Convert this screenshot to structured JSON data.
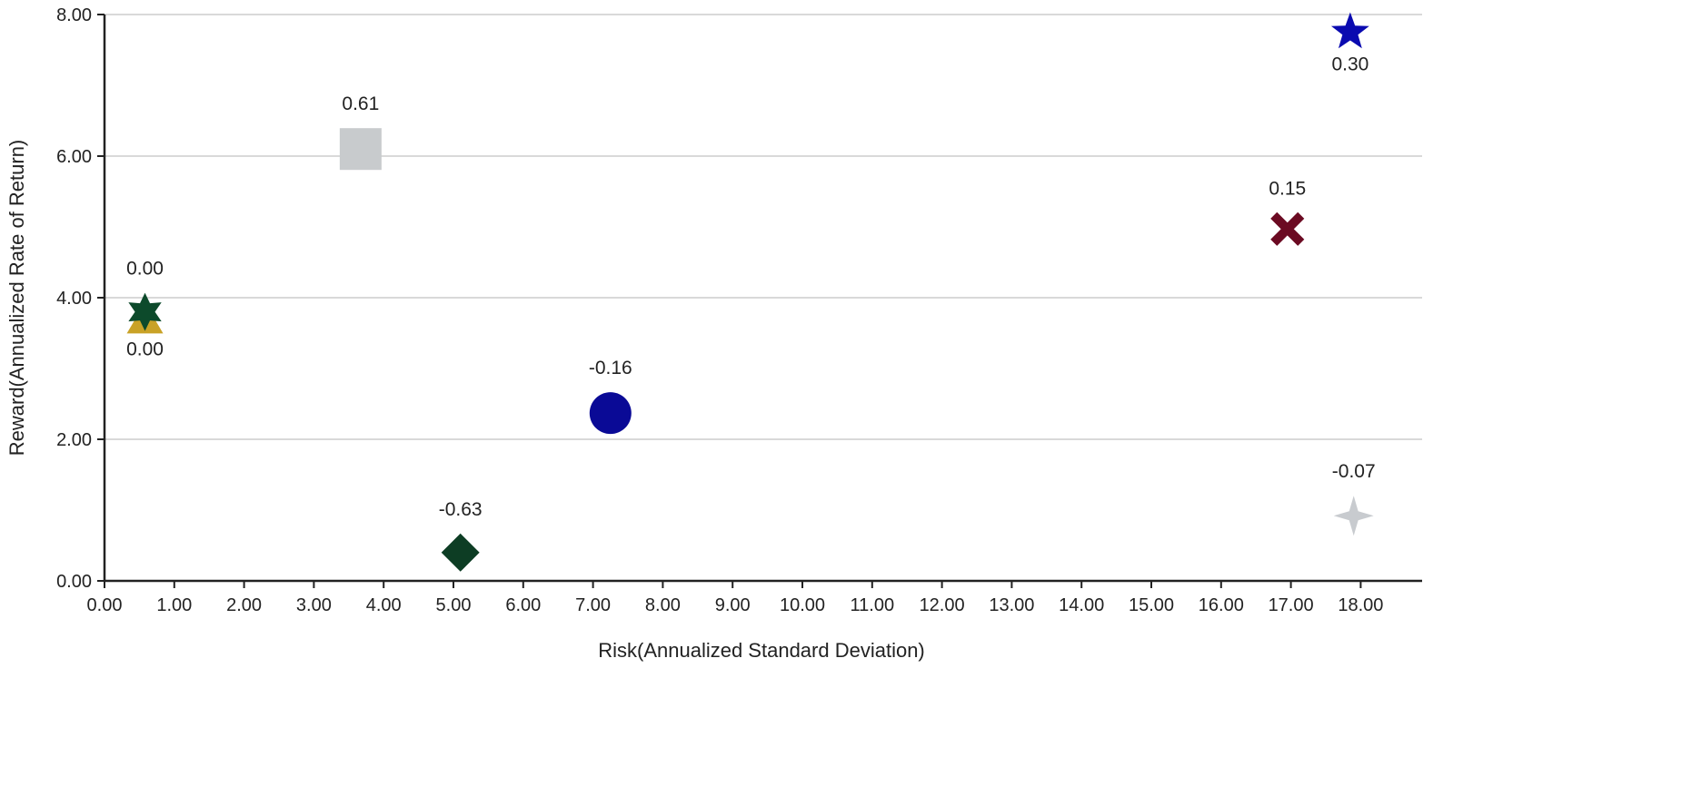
{
  "chart_data": {
    "type": "scatter",
    "title": "",
    "xlabel": "Risk(Annualized Standard Deviation)",
    "ylabel": "Reward(Annualized Rate of Return)",
    "xlim": [
      0,
      19
    ],
    "ylim": [
      0,
      8
    ],
    "x_ticks": [
      "0.00",
      "1.00",
      "2.00",
      "3.00",
      "4.00",
      "5.00",
      "6.00",
      "7.00",
      "8.00",
      "9.00",
      "10.00",
      "11.00",
      "12.00",
      "13.00",
      "14.00",
      "15.00",
      "16.00",
      "17.00",
      "18.00"
    ],
    "y_ticks": [
      "0.00",
      "2.00",
      "4.00",
      "6.00",
      "8.00"
    ],
    "grid": "horizontal",
    "points": [
      {
        "x": 3.67,
        "y": 6.1,
        "label": "0.61",
        "label_pos": "above",
        "shape": "square",
        "color": "#c8cbcd"
      },
      {
        "x": 0.58,
        "y": 3.7,
        "label": "0.00",
        "label_pos": "below",
        "shape": "triangle",
        "color": "#c9a227"
      },
      {
        "x": 0.58,
        "y": 3.8,
        "label": "0.00",
        "label_pos": "above",
        "shape": "star6",
        "color": "#0d4a2b"
      },
      {
        "x": 7.25,
        "y": 2.37,
        "label": "-0.16",
        "label_pos": "above",
        "shape": "circle",
        "color": "#0a0a96"
      },
      {
        "x": 5.1,
        "y": 0.4,
        "label": "-0.63",
        "label_pos": "above",
        "shape": "diamond",
        "color": "#0d3d24"
      },
      {
        "x": 16.95,
        "y": 4.97,
        "label": "0.15",
        "label_pos": "above",
        "shape": "cross",
        "color": "#6b0a22"
      },
      {
        "x": 17.85,
        "y": 7.75,
        "label": "0.30",
        "label_pos": "below",
        "shape": "star5",
        "color": "#0a0ab0"
      },
      {
        "x": 17.9,
        "y": 0.92,
        "label": "-0.07",
        "label_pos": "above",
        "shape": "star4",
        "color": "#c8cbcf"
      }
    ]
  }
}
